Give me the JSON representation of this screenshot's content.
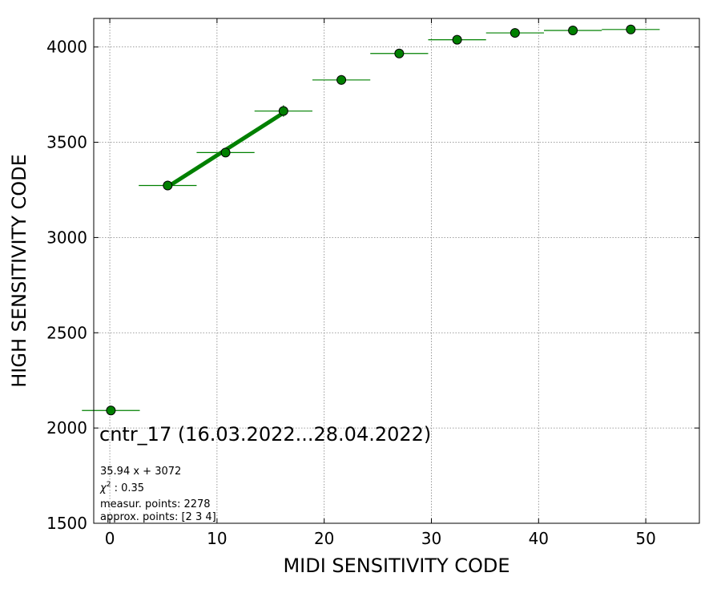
{
  "chart_data": {
    "type": "scatter",
    "xlabel": "MIDI SENSITIVITY CODE",
    "ylabel": "HIGH SENSITIVITY CODE",
    "xlim": [
      -1.5,
      55
    ],
    "ylim": [
      1500,
      4150
    ],
    "xticks": [
      "0",
      "10",
      "20",
      "30",
      "40",
      "50"
    ],
    "yticks": [
      "1500",
      "2000",
      "2500",
      "3000",
      "3500",
      "4000"
    ],
    "grid": true,
    "colors": {
      "points": "#008000",
      "point_edge": "#000000",
      "fit_line": "#008000",
      "grid": "#808080"
    },
    "series": [
      {
        "points": [
          {
            "x": 0.1,
            "y": 2092,
            "xerr": 2.7,
            "yerr": 8
          },
          {
            "x": 5.4,
            "y": 3273,
            "xerr": 2.7,
            "yerr": 25
          },
          {
            "x": 10.8,
            "y": 3446,
            "xerr": 2.7,
            "yerr": 22
          },
          {
            "x": 16.2,
            "y": 3664,
            "xerr": 2.7,
            "yerr": 30
          },
          {
            "x": 21.6,
            "y": 3827,
            "xerr": 2.7,
            "yerr": 25
          },
          {
            "x": 27.0,
            "y": 3966,
            "xerr": 2.7,
            "yerr": 8
          },
          {
            "x": 32.4,
            "y": 4038,
            "xerr": 2.7,
            "yerr": 8
          },
          {
            "x": 37.8,
            "y": 4074,
            "xerr": 2.7,
            "yerr": 8
          },
          {
            "x": 43.2,
            "y": 4087,
            "xerr": 2.7,
            "yerr": 8
          },
          {
            "x": 48.6,
            "y": 4092,
            "xerr": 2.7,
            "yerr": 8
          }
        ]
      }
    ],
    "fit_line": {
      "slope": 35.94,
      "intercept": 3072,
      "x_range": [
        5.4,
        16.2
      ]
    },
    "annotations": {
      "title": "cntr_17 (16.03.2022...28.04.2022)",
      "equation": "35.94 x + 3072",
      "chi_label": "χ",
      "chi_sup": "2",
      "chi_value": " : 0.35",
      "measur_points": "measur. points: 2278",
      "approx_points": "approx. points: [2 3 4]"
    }
  }
}
